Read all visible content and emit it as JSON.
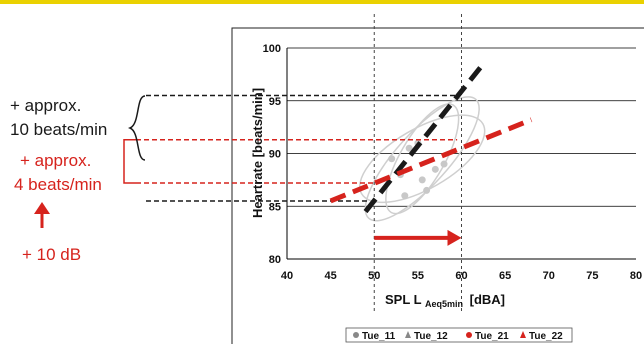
{
  "annotations": {
    "black_line1": "+ approx.",
    "black_line2": "10 beats/min",
    "red_line1": "+ approx.",
    "red_line2": "4 beats/min",
    "db_label": "+ 10 dB"
  },
  "colors": {
    "black": "#1a1a1a",
    "red": "#d6231d",
    "accent_bar": "#ead100",
    "ellipse": "#cfcfcf",
    "scatter": "#c8c8c8",
    "grid": "#000000"
  },
  "chart_data": {
    "type": "scatter",
    "title": "",
    "xlabel": "SPL L",
    "xlabel_sub": "Aeq5min",
    "xlabel_unit": "[dBA]",
    "ylabel": "Heartrate [beats/min]",
    "xlim": [
      40,
      80
    ],
    "ylim": [
      80,
      100
    ],
    "x_ticks": [
      40,
      45,
      50,
      55,
      60,
      65,
      70,
      75,
      80
    ],
    "y_ticks": [
      80,
      85,
      90,
      95,
      100
    ],
    "grid": "horizontal",
    "legend_position": "bottom",
    "legend": [
      "Tue_11",
      "Tue_12",
      "Tue_21",
      "Tue_22"
    ],
    "reference_lines_x": [
      50,
      60
    ],
    "trend_lines": [
      {
        "color": "black",
        "x": [
          49,
          62.5
        ],
        "y": [
          84.5,
          98.5
        ]
      },
      {
        "color": "red",
        "x": [
          45,
          68
        ],
        "y": [
          85.5,
          93.2
        ]
      }
    ],
    "guide_lines_y": {
      "black": [
        95.5,
        85.5
      ],
      "red": [
        91.3,
        87.2
      ]
    },
    "arrow": {
      "from_x": 50,
      "to_x": 60,
      "y": 82
    },
    "series": [
      {
        "name": "Tue_11",
        "points": [
          [
            52,
            89.5
          ],
          [
            53,
            88
          ],
          [
            55,
            91
          ],
          [
            57,
            88.5
          ],
          [
            56,
            86.5
          ],
          [
            54,
            90.5
          ],
          [
            58,
            89
          ],
          [
            55.5,
            87.5
          ],
          [
            53.5,
            86
          ]
        ]
      }
    ]
  }
}
